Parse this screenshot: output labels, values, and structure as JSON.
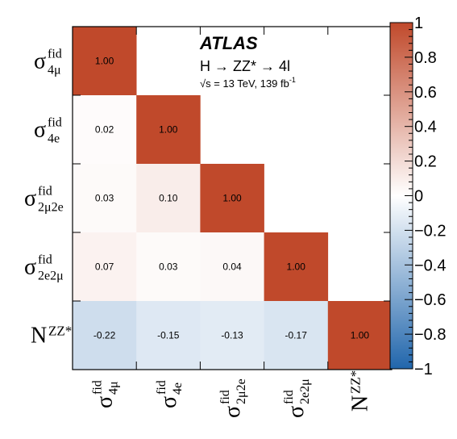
{
  "chart_data": {
    "type": "heatmap",
    "title": "",
    "rows": [
      {
        "base": "σ",
        "sup": "fid",
        "sub": "4μ"
      },
      {
        "base": "σ",
        "sup": "fid",
        "sub": "4e"
      },
      {
        "base": "σ",
        "sup": "fid",
        "sub": "2μ2e"
      },
      {
        "base": "σ",
        "sup": "fid",
        "sub": "2e2μ"
      },
      {
        "base": "N",
        "sup": "ZZ*",
        "sub": ""
      }
    ],
    "values": [
      [
        1.0,
        null,
        null,
        null,
        null
      ],
      [
        0.02,
        1.0,
        null,
        null,
        null
      ],
      [
        0.03,
        0.1,
        1.0,
        null,
        null
      ],
      [
        0.07,
        0.03,
        0.04,
        1.0,
        null
      ],
      [
        -0.22,
        -0.15,
        -0.13,
        -0.17,
        1.0
      ]
    ],
    "value_labels": [
      [
        "1.00",
        "",
        "",
        "",
        ""
      ],
      [
        "0.02",
        "1.00",
        "",
        "",
        ""
      ],
      [
        "0.03",
        "0.10",
        "1.00",
        "",
        ""
      ],
      [
        "0.07",
        "0.03",
        "0.04",
        "1.00",
        ""
      ],
      [
        "-0.22",
        "-0.15",
        "-0.13",
        "-0.17",
        "1.00"
      ]
    ],
    "zlim": [
      -1,
      1
    ],
    "colorbar_ticks": [
      "1",
      "0.8",
      "0.6",
      "0.4",
      "0.2",
      "0",
      "−0.2",
      "−0.4",
      "−0.6",
      "−0.8",
      "−1"
    ],
    "colorbar_tick_values": [
      1,
      0.8,
      0.6,
      0.4,
      0.2,
      0,
      -0.2,
      -0.4,
      -0.6,
      -0.8,
      -1
    ],
    "colors": {
      "positive": "#c0492b",
      "neutral": "#ffffff",
      "negative": "#2166ac"
    },
    "annotations": {
      "experiment": "ATLAS",
      "process": "H → ZZ* → 4l",
      "energy": "√s = 13 TeV, 139 fb",
      "energy_sup": "-1"
    }
  }
}
